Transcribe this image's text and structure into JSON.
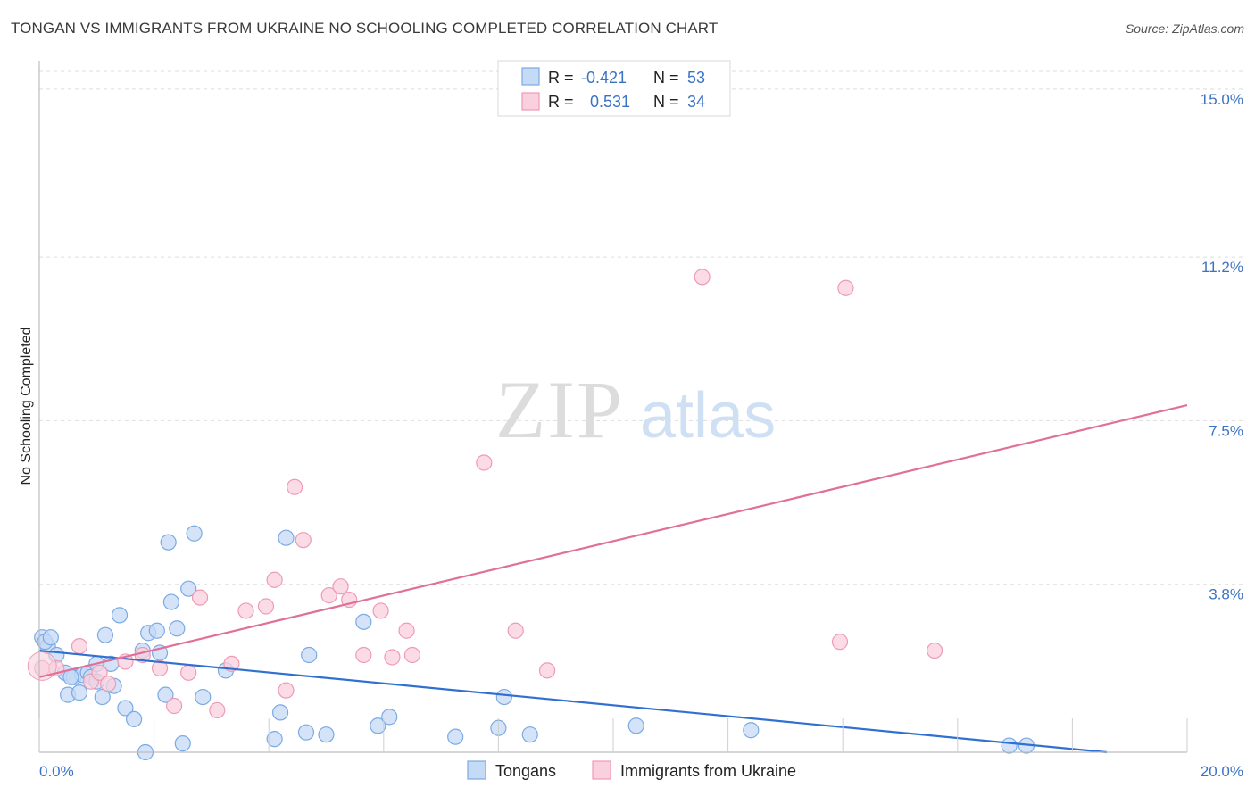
{
  "title": "TONGAN VS IMMIGRANTS FROM UKRAINE NO SCHOOLING COMPLETED CORRELATION CHART",
  "source": "Source: ZipAtlas.com",
  "watermark": {
    "zip": "ZIP",
    "atlas": "atlas"
  },
  "chart_data": {
    "type": "scatter",
    "title": "TONGAN VS IMMIGRANTS FROM UKRAINE NO SCHOOLING COMPLETED CORRELATION CHART",
    "xlabel": "",
    "ylabel": "No Schooling Completed",
    "xlim": [
      0,
      20
    ],
    "ylim": [
      0,
      15.4
    ],
    "x_tick_labels": [
      "0.0%",
      "20.0%"
    ],
    "y_ticks": [
      3.8,
      7.5,
      11.2,
      15.0
    ],
    "y_tick_labels": [
      "3.8%",
      "7.5%",
      "11.2%",
      "15.0%"
    ],
    "grid": true,
    "legend_position": "top-center",
    "series": [
      {
        "name": "Tongans",
        "color": "#7aaae6",
        "fill": "#c5daf5",
        "R_label": "R =",
        "R": "-0.421",
        "N_label": "N =",
        "N": "53",
        "trend": {
          "x": [
            0,
            18.6
          ],
          "y": [
            2.3,
            0.0
          ],
          "color": "#3070d0"
        },
        "points": [
          [
            0.05,
            2.6
          ],
          [
            0.15,
            2.4
          ],
          [
            0.3,
            2.2
          ],
          [
            0.1,
            2.5
          ],
          [
            0.45,
            1.8
          ],
          [
            0.5,
            1.3
          ],
          [
            0.6,
            1.7
          ],
          [
            0.7,
            1.35
          ],
          [
            0.75,
            1.75
          ],
          [
            0.85,
            1.8
          ],
          [
            0.9,
            1.7
          ],
          [
            1.0,
            2.0
          ],
          [
            1.1,
            1.25
          ],
          [
            1.15,
            2.65
          ],
          [
            1.25,
            2.0
          ],
          [
            1.3,
            1.5
          ],
          [
            1.4,
            3.1
          ],
          [
            1.5,
            1.0
          ],
          [
            1.65,
            0.75
          ],
          [
            1.8,
            2.3
          ],
          [
            1.9,
            2.7
          ],
          [
            2.05,
            2.75
          ],
          [
            2.1,
            2.25
          ],
          [
            2.2,
            1.3
          ],
          [
            2.25,
            4.75
          ],
          [
            2.3,
            3.4
          ],
          [
            2.4,
            2.8
          ],
          [
            2.5,
            0.2
          ],
          [
            2.6,
            3.7
          ],
          [
            2.7,
            4.95
          ],
          [
            2.85,
            1.25
          ],
          [
            3.25,
            1.85
          ],
          [
            4.1,
            0.3
          ],
          [
            4.2,
            0.9
          ],
          [
            4.3,
            4.85
          ],
          [
            4.65,
            0.45
          ],
          [
            4.7,
            2.2
          ],
          [
            5.0,
            0.4
          ],
          [
            5.65,
            2.95
          ],
          [
            5.9,
            0.6
          ],
          [
            6.1,
            0.8
          ],
          [
            7.25,
            0.35
          ],
          [
            8.0,
            0.55
          ],
          [
            8.1,
            1.25
          ],
          [
            8.55,
            0.4
          ],
          [
            10.4,
            0.6
          ],
          [
            12.4,
            0.5
          ],
          [
            16.9,
            0.15
          ],
          [
            17.2,
            0.15
          ],
          [
            1.85,
            0.0
          ],
          [
            0.2,
            2.6
          ],
          [
            0.55,
            1.7
          ],
          [
            1.0,
            1.6
          ]
        ]
      },
      {
        "name": "Immigrants from Ukraine",
        "color": "#ef9ab5",
        "fill": "#f9d0dd",
        "R_label": "R =",
        "R": "0.531",
        "N_label": "N =",
        "N": "34",
        "trend": {
          "x": [
            0,
            20
          ],
          "y": [
            1.7,
            7.85
          ],
          "color": "#e07098"
        },
        "points": [
          [
            0.05,
            1.9
          ],
          [
            0.3,
            1.9
          ],
          [
            0.7,
            2.4
          ],
          [
            0.9,
            1.6
          ],
          [
            1.05,
            1.8
          ],
          [
            1.2,
            1.55
          ],
          [
            1.5,
            2.05
          ],
          [
            1.8,
            2.2
          ],
          [
            2.1,
            1.9
          ],
          [
            2.35,
            1.05
          ],
          [
            2.6,
            1.8
          ],
          [
            2.8,
            3.5
          ],
          [
            3.1,
            0.95
          ],
          [
            3.35,
            2.0
          ],
          [
            3.6,
            3.2
          ],
          [
            3.95,
            3.3
          ],
          [
            4.1,
            3.9
          ],
          [
            4.3,
            1.4
          ],
          [
            4.45,
            6.0
          ],
          [
            4.6,
            4.8
          ],
          [
            5.05,
            3.55
          ],
          [
            5.25,
            3.75
          ],
          [
            5.4,
            3.45
          ],
          [
            5.65,
            2.2
          ],
          [
            5.95,
            3.2
          ],
          [
            6.15,
            2.15
          ],
          [
            6.4,
            2.75
          ],
          [
            6.5,
            2.2
          ],
          [
            7.75,
            6.55
          ],
          [
            8.3,
            2.75
          ],
          [
            8.85,
            1.85
          ],
          [
            11.55,
            10.75
          ],
          [
            13.95,
            2.5
          ],
          [
            15.6,
            2.3
          ]
        ]
      }
    ]
  },
  "extra_points": {
    "immigrants": [
      [
        14.05,
        10.5
      ]
    ]
  }
}
